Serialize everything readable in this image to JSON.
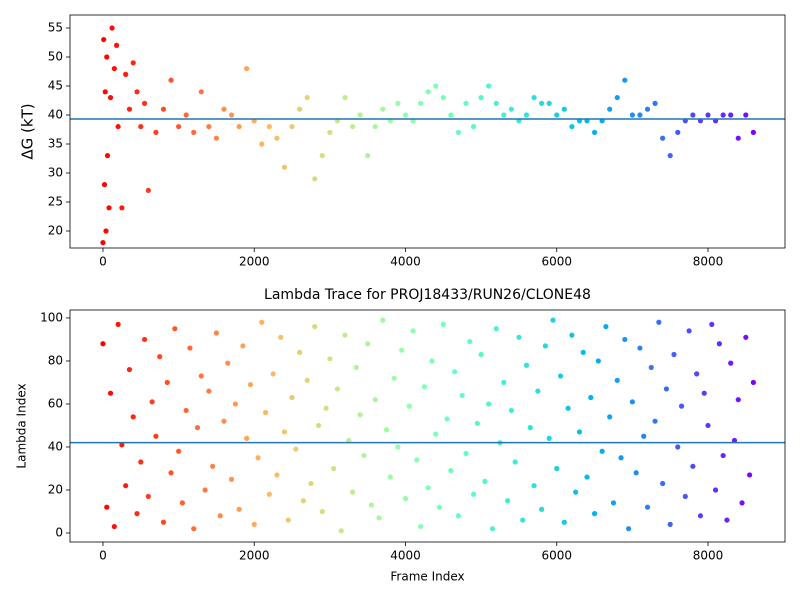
{
  "chart_data": [
    {
      "type": "scatter",
      "ylabel": "ΔG (kT)",
      "colormap": "rainbow_r",
      "marker_size": 2.6,
      "hline": {
        "value": 39.3,
        "color": "#1f77b4"
      },
      "xlim": [
        -436,
        9018
      ],
      "xticks": [
        0,
        2000,
        4000,
        6000,
        8000
      ],
      "ylim": [
        17.07,
        57.24
      ],
      "yticks": [
        20,
        25,
        30,
        35,
        40,
        45,
        50,
        55
      ],
      "x": [
        0,
        10,
        20,
        30,
        40,
        50,
        60,
        80,
        100,
        120,
        150,
        180,
        200,
        250,
        300,
        350,
        400,
        450,
        500,
        550,
        600,
        700,
        800,
        900,
        1000,
        1100,
        1200,
        1300,
        1400,
        1500,
        1600,
        1700,
        1800,
        1900,
        2000,
        2100,
        2200,
        2300,
        2400,
        2500,
        2600,
        2700,
        2800,
        2900,
        3000,
        3100,
        3200,
        3300,
        3400,
        3500,
        3600,
        3700,
        3800,
        3900,
        4000,
        4100,
        4200,
        4300,
        4400,
        4500,
        4600,
        4700,
        4800,
        4900,
        5000,
        5100,
        5200,
        5300,
        5400,
        5500,
        5600,
        5700,
        5800,
        5900,
        6000,
        6100,
        6200,
        6300,
        6400,
        6500,
        6600,
        6700,
        6800,
        6900,
        7000,
        7100,
        7200,
        7300,
        7400,
        7500,
        7600,
        7700,
        7800,
        7900,
        8000,
        8100,
        8200,
        8300,
        8400,
        8500,
        8600
      ],
      "values": [
        18,
        53,
        28,
        44,
        20,
        50,
        33,
        24,
        43,
        55,
        48,
        52,
        38,
        24,
        47,
        41,
        49,
        44,
        38,
        42,
        27,
        37,
        41,
        46,
        38,
        40,
        37,
        44,
        38,
        36,
        41,
        40,
        38,
        48,
        39,
        35,
        38,
        36,
        31,
        38,
        41,
        43,
        29,
        33,
        37,
        39,
        43,
        38,
        40,
        33,
        38,
        41,
        39,
        42,
        40,
        39,
        42,
        44,
        45,
        43,
        40,
        37,
        42,
        38,
        43,
        45,
        42,
        40,
        41,
        39,
        40,
        43,
        42,
        42,
        40,
        41,
        38,
        39,
        39,
        37,
        39,
        41,
        43,
        46,
        40,
        40,
        41,
        42,
        36,
        33,
        37,
        39,
        40,
        39,
        40,
        39,
        40,
        40,
        36,
        40,
        37
      ]
    },
    {
      "type": "scatter",
      "title": "Lambda Trace for PROJ18433/RUN26/CLONE48",
      "xlabel": "Frame Index",
      "ylabel": "Lambda Index",
      "colormap": "rainbow_r",
      "marker_size": 2.6,
      "hline": {
        "value": 42,
        "color": "#1f77b4"
      },
      "xlim": [
        -436,
        9018
      ],
      "xticks": [
        0,
        2000,
        4000,
        6000,
        8000
      ],
      "ylim": [
        -4.19,
        103.7
      ],
      "yticks": [
        0,
        20,
        40,
        60,
        80,
        100
      ],
      "x": [
        0,
        50,
        100,
        150,
        200,
        250,
        300,
        350,
        400,
        450,
        500,
        550,
        600,
        650,
        700,
        750,
        800,
        850,
        900,
        950,
        1000,
        1050,
        1100,
        1150,
        1200,
        1250,
        1300,
        1350,
        1400,
        1450,
        1500,
        1550,
        1600,
        1650,
        1700,
        1750,
        1800,
        1850,
        1900,
        1950,
        2000,
        2050,
        2100,
        2150,
        2200,
        2250,
        2300,
        2350,
        2400,
        2450,
        2500,
        2550,
        2600,
        2650,
        2700,
        2750,
        2800,
        2850,
        2900,
        2950,
        3000,
        3050,
        3100,
        3150,
        3200,
        3250,
        3300,
        3350,
        3400,
        3450,
        3500,
        3550,
        3600,
        3650,
        3700,
        3750,
        3800,
        3850,
        3900,
        3950,
        4000,
        4050,
        4100,
        4150,
        4200,
        4250,
        4300,
        4350,
        4400,
        4450,
        4500,
        4550,
        4600,
        4650,
        4700,
        4750,
        4800,
        4850,
        4900,
        4950,
        5000,
        5050,
        5100,
        5150,
        5200,
        5250,
        5300,
        5350,
        5400,
        5450,
        5500,
        5550,
        5600,
        5650,
        5700,
        5750,
        5800,
        5850,
        5900,
        5950,
        6000,
        6050,
        6100,
        6150,
        6200,
        6250,
        6300,
        6350,
        6400,
        6450,
        6500,
        6550,
        6600,
        6650,
        6700,
        6750,
        6800,
        6850,
        6900,
        6950,
        7000,
        7050,
        7100,
        7150,
        7200,
        7250,
        7300,
        7350,
        7400,
        7450,
        7500,
        7550,
        7600,
        7650,
        7700,
        7750,
        7800,
        7850,
        7900,
        7950,
        8000,
        8050,
        8100,
        8150,
        8200,
        8250,
        8300,
        8350,
        8400,
        8450,
        8500,
        8550,
        8600
      ],
      "values": [
        88,
        12,
        65,
        3,
        97,
        41,
        22,
        76,
        54,
        9,
        33,
        90,
        17,
        61,
        45,
        82,
        5,
        70,
        28,
        95,
        38,
        14,
        57,
        86,
        2,
        49,
        73,
        20,
        66,
        31,
        93,
        8,
        52,
        79,
        25,
        60,
        11,
        87,
        44,
        69,
        4,
        35,
        98,
        56,
        18,
        74,
        27,
        91,
        47,
        6,
        63,
        39,
        84,
        15,
        71,
        23,
        96,
        50,
        10,
        58,
        81,
        30,
        67,
        1,
        92,
        43,
        19,
        77,
        55,
        36,
        88,
        13,
        62,
        7,
        99,
        48,
        26,
        72,
        40,
        85,
        16,
        59,
        94,
        34,
        3,
        68,
        21,
        80,
        46,
        12,
        97,
        53,
        29,
        75,
        8,
        64,
        37,
        89,
        18,
        51,
        83,
        24,
        60,
        2,
        95,
        42,
        70,
        15,
        57,
        33,
        91,
        6,
        78,
        49,
        22,
        66,
        11,
        87,
        44,
        99,
        30,
        73,
        5,
        58,
        92,
        19,
        47,
        84,
        26,
        63,
        9,
        80,
        38,
        96,
        54,
        14,
        71,
        35,
        90,
        2,
        61,
        28,
        86,
        45,
        12,
        77,
        52,
        98,
        23,
        67,
        4,
        83,
        40,
        59,
        17,
        94,
        31,
        74,
        8,
        65,
        50,
        97,
        20,
        88,
        36,
        6,
        79,
        43,
        62,
        14,
        91,
        27,
        70
      ]
    }
  ]
}
